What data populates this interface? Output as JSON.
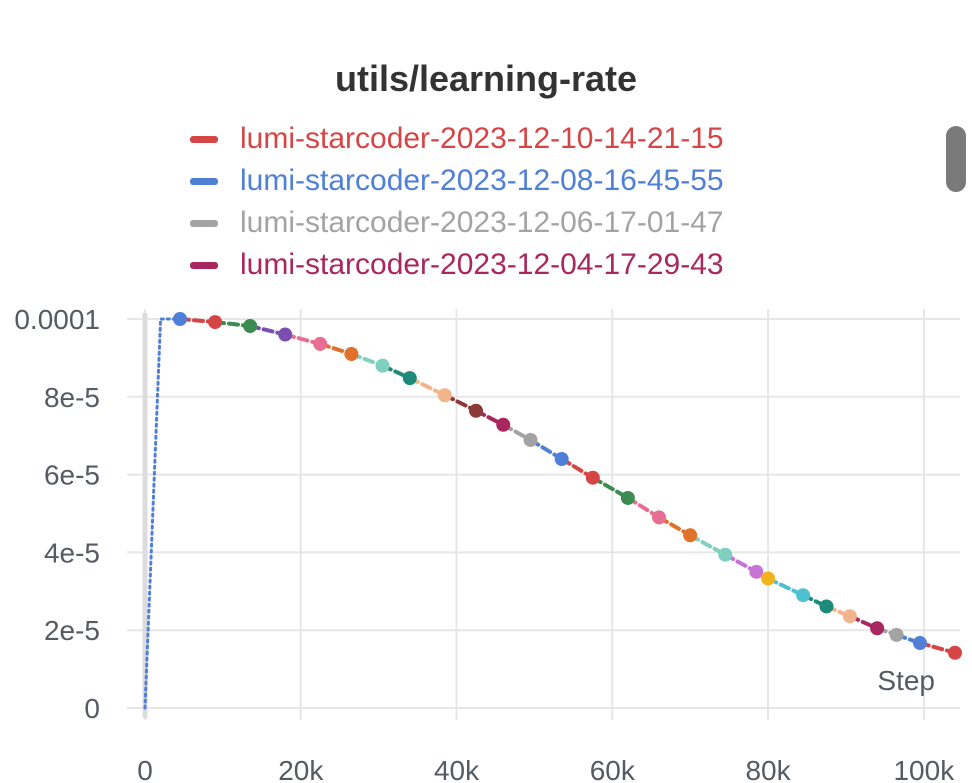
{
  "chart_data": {
    "type": "line",
    "title": "utils/learning-rate",
    "xlabel": "Step",
    "ylabel": "",
    "xlim": [
      0,
      104000
    ],
    "ylim": [
      0,
      0.0001
    ],
    "x_ticks": [
      {
        "value": 0,
        "label": "0"
      },
      {
        "value": 20000,
        "label": "20k"
      },
      {
        "value": 40000,
        "label": "40k"
      },
      {
        "value": 60000,
        "label": "60k"
      },
      {
        "value": 80000,
        "label": "80k"
      },
      {
        "value": 100000,
        "label": "100k"
      }
    ],
    "y_ticks": [
      {
        "value": 0,
        "label": "0"
      },
      {
        "value": 2e-05,
        "label": "2e-5"
      },
      {
        "value": 4e-05,
        "label": "4e-5"
      },
      {
        "value": 6e-05,
        "label": "6e-5"
      },
      {
        "value": 8e-05,
        "label": "8e-5"
      },
      {
        "value": 0.0001,
        "label": "0.0001"
      }
    ],
    "grid": true,
    "legend_position": "top",
    "series": [
      {
        "name": "lumi-starcoder-2023-12-10-14-21-15",
        "color": "#d64545"
      },
      {
        "name": "lumi-starcoder-2023-12-08-16-45-55",
        "color": "#4f7fd6"
      },
      {
        "name": "lumi-starcoder-2023-12-06-17-01-47",
        "color": "#a3a3a3"
      },
      {
        "name": "lumi-starcoder-2023-12-04-17-29-43",
        "color": "#a8275f"
      }
    ],
    "warmup_segment": {
      "color": "#4f7fd6",
      "points": [
        [
          0,
          0
        ],
        [
          2000,
          0.0001
        ],
        [
          4500,
          0.0001
        ]
      ]
    },
    "segments": [
      {
        "color": "#d64545",
        "points": [
          [
            4500,
            0.0001
          ],
          [
            9000,
            9.92e-05
          ]
        ]
      },
      {
        "color": "#3a8c50",
        "points": [
          [
            9000,
            9.92e-05
          ],
          [
            13500,
            9.82e-05
          ]
        ]
      },
      {
        "color": "#7a4fb0",
        "points": [
          [
            13500,
            9.82e-05
          ],
          [
            18000,
            9.6e-05
          ]
        ]
      },
      {
        "color": "#e86f93",
        "points": [
          [
            18000,
            9.6e-05
          ],
          [
            22500,
            9.36e-05
          ]
        ]
      },
      {
        "color": "#e0702a",
        "points": [
          [
            22500,
            9.36e-05
          ],
          [
            26500,
            9.1e-05
          ]
        ]
      },
      {
        "color": "#7fd0c0",
        "points": [
          [
            26500,
            9.1e-05
          ],
          [
            30500,
            8.8e-05
          ]
        ]
      },
      {
        "color": "#1e8a7a",
        "points": [
          [
            30500,
            8.8e-05
          ],
          [
            34000,
            8.48e-05
          ]
        ]
      },
      {
        "color": "#f2b48a",
        "points": [
          [
            34000,
            8.48e-05
          ],
          [
            38500,
            8.04e-05
          ]
        ]
      },
      {
        "color": "#8b3a3a",
        "points": [
          [
            38500,
            8.04e-05
          ],
          [
            42500,
            7.64e-05
          ]
        ]
      },
      {
        "color": "#a8275f",
        "points": [
          [
            42500,
            7.64e-05
          ],
          [
            46000,
            7.28e-05
          ]
        ]
      },
      {
        "color": "#a3a3a3",
        "points": [
          [
            46000,
            7.28e-05
          ],
          [
            49500,
            6.89e-05
          ]
        ]
      },
      {
        "color": "#4f7fd6",
        "points": [
          [
            49500,
            6.89e-05
          ],
          [
            53500,
            6.4e-05
          ]
        ]
      },
      {
        "color": "#d64545",
        "points": [
          [
            53500,
            6.4e-05
          ],
          [
            57500,
            5.92e-05
          ]
        ]
      },
      {
        "color": "#3a8c50",
        "points": [
          [
            57500,
            5.92e-05
          ],
          [
            62000,
            5.4e-05
          ]
        ]
      },
      {
        "color": "#e86f93",
        "points": [
          [
            62000,
            5.4e-05
          ],
          [
            66000,
            4.9e-05
          ]
        ]
      },
      {
        "color": "#e0702a",
        "points": [
          [
            66000,
            4.9e-05
          ],
          [
            70000,
            4.44e-05
          ]
        ]
      },
      {
        "color": "#7fd0c0",
        "points": [
          [
            70000,
            4.44e-05
          ],
          [
            74500,
            3.94e-05
          ]
        ]
      },
      {
        "color": "#c774d6",
        "points": [
          [
            74500,
            3.94e-05
          ],
          [
            78500,
            3.5e-05
          ]
        ]
      },
      {
        "color": "#f2b21c",
        "points": [
          [
            78500,
            3.5e-05
          ],
          [
            80000,
            3.33e-05
          ]
        ]
      },
      {
        "color": "#4fc0d0",
        "points": [
          [
            80000,
            3.33e-05
          ],
          [
            84500,
            2.9e-05
          ]
        ]
      },
      {
        "color": "#1e8a7a",
        "points": [
          [
            84500,
            2.9e-05
          ],
          [
            87500,
            2.61e-05
          ]
        ]
      },
      {
        "color": "#f2b48a",
        "points": [
          [
            87500,
            2.61e-05
          ],
          [
            90500,
            2.36e-05
          ]
        ]
      },
      {
        "color": "#a8275f",
        "points": [
          [
            90500,
            2.36e-05
          ],
          [
            94000,
            2.05e-05
          ]
        ]
      },
      {
        "color": "#a3a3a3",
        "points": [
          [
            94000,
            2.05e-05
          ],
          [
            96500,
            1.88e-05
          ]
        ]
      },
      {
        "color": "#4f7fd6",
        "points": [
          [
            96500,
            1.88e-05
          ],
          [
            99500,
            1.67e-05
          ]
        ]
      },
      {
        "color": "#d64545",
        "points": [
          [
            99500,
            1.67e-05
          ],
          [
            104000,
            1.42e-05
          ]
        ]
      }
    ],
    "markers": [
      {
        "x": 4500,
        "y": 0.0001,
        "color": "#4f7fd6"
      },
      {
        "x": 9000,
        "y": 9.92e-05,
        "color": "#d64545"
      },
      {
        "x": 13500,
        "y": 9.82e-05,
        "color": "#3a8c50"
      },
      {
        "x": 18000,
        "y": 9.6e-05,
        "color": "#7a4fb0"
      },
      {
        "x": 22500,
        "y": 9.36e-05,
        "color": "#e86f93"
      },
      {
        "x": 26500,
        "y": 9.1e-05,
        "color": "#e0702a"
      },
      {
        "x": 30500,
        "y": 8.8e-05,
        "color": "#7fd0c0"
      },
      {
        "x": 34000,
        "y": 8.48e-05,
        "color": "#1e8a7a"
      },
      {
        "x": 38500,
        "y": 8.04e-05,
        "color": "#f2b48a"
      },
      {
        "x": 42500,
        "y": 7.64e-05,
        "color": "#8b3a3a"
      },
      {
        "x": 46000,
        "y": 7.28e-05,
        "color": "#a8275f"
      },
      {
        "x": 49500,
        "y": 6.89e-05,
        "color": "#a3a3a3"
      },
      {
        "x": 53500,
        "y": 6.4e-05,
        "color": "#4f7fd6"
      },
      {
        "x": 57500,
        "y": 5.92e-05,
        "color": "#d64545"
      },
      {
        "x": 62000,
        "y": 5.4e-05,
        "color": "#3a8c50"
      },
      {
        "x": 66000,
        "y": 4.9e-05,
        "color": "#e86f93"
      },
      {
        "x": 70000,
        "y": 4.44e-05,
        "color": "#e0702a"
      },
      {
        "x": 74500,
        "y": 3.94e-05,
        "color": "#7fd0c0"
      },
      {
        "x": 78500,
        "y": 3.5e-05,
        "color": "#c774d6"
      },
      {
        "x": 80000,
        "y": 3.33e-05,
        "color": "#f2b21c"
      },
      {
        "x": 84500,
        "y": 2.9e-05,
        "color": "#4fc0d0"
      },
      {
        "x": 87500,
        "y": 2.61e-05,
        "color": "#1e8a7a"
      },
      {
        "x": 90500,
        "y": 2.36e-05,
        "color": "#f2b48a"
      },
      {
        "x": 94000,
        "y": 2.05e-05,
        "color": "#a8275f"
      },
      {
        "x": 96500,
        "y": 1.88e-05,
        "color": "#a3a3a3"
      },
      {
        "x": 99500,
        "y": 1.67e-05,
        "color": "#4f7fd6"
      },
      {
        "x": 104000,
        "y": 1.42e-05,
        "color": "#d64545"
      }
    ]
  }
}
